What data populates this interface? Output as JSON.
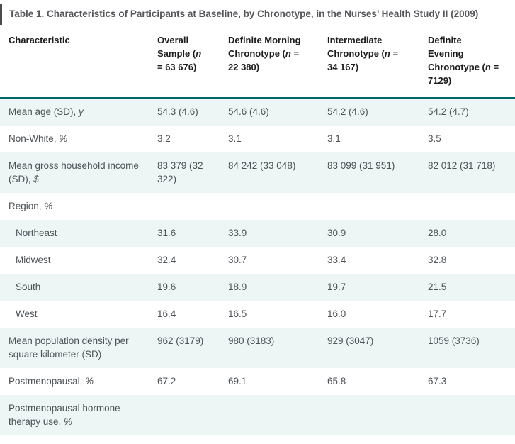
{
  "title": "Table 1. Characteristics of Participants at Baseline, by Chronotype, in the Nurses’ Health Study II (2009)",
  "colors": {
    "header_rule": "#00696e",
    "row_stripe": "#eef5f5",
    "title_text": "#55565a",
    "header_text": "#1d1d1f",
    "body_text": "#4d5257"
  },
  "columns": [
    {
      "label": "Characteristic"
    },
    {
      "pre": "Overall Sample (",
      "n": "n",
      "post": " = 63 676)"
    },
    {
      "pre": "Definite Morning Chronotype (",
      "n": "n",
      "post": " = 22 380)"
    },
    {
      "pre": "Intermediate Chronotype (",
      "n": "n",
      "post": " = 34 167)"
    },
    {
      "pre": "Definite Evening Chronotype (",
      "n": "n",
      "post": " = 7129)"
    }
  ],
  "rows": [
    {
      "label": "Mean age (SD), ",
      "unit": "y",
      "values": [
        "54.3 (4.6)",
        "54.6 (4.6)",
        "54.2 (4.6)",
        "54.2 (4.7)"
      ]
    },
    {
      "label": "Non-White, ",
      "unit": "%",
      "values": [
        "3.2",
        "3.1",
        "3.1",
        "3.5"
      ]
    },
    {
      "label": "Mean gross household income (SD), ",
      "unit": "$",
      "values": [
        "83 379 (32 322)",
        "84 242 (33 048)",
        "83 099 (31 951)",
        "82 012 (31 718)"
      ]
    },
    {
      "label": "Region, ",
      "unit": "%",
      "values": [
        "",
        "",
        "",
        ""
      ]
    },
    {
      "label": "Northeast",
      "unit": "",
      "values": [
        "31.6",
        "33.9",
        "30.9",
        "28.0"
      ]
    },
    {
      "label": "Midwest",
      "unit": "",
      "values": [
        "32.4",
        "30.7",
        "33.4",
        "32.8"
      ]
    },
    {
      "label": "South",
      "unit": "",
      "values": [
        "19.6",
        "18.9",
        "19.7",
        "21.5"
      ]
    },
    {
      "label": "West",
      "unit": "",
      "values": [
        "16.4",
        "16.5",
        "16.0",
        "17.7"
      ]
    },
    {
      "label": "Mean population density per square kilometer (SD)",
      "unit": "",
      "values": [
        "962 (3179)",
        "980 (3183)",
        "929 (3047)",
        "1059 (3736)"
      ]
    },
    {
      "label": "Postmenopausal, ",
      "unit": "%",
      "values": [
        "67.2",
        "69.1",
        "65.8",
        "67.3"
      ]
    },
    {
      "label": "Postmenopausal hormone therapy use, ",
      "unit": "%",
      "values": [
        "",
        "",
        "",
        ""
      ]
    }
  ]
}
